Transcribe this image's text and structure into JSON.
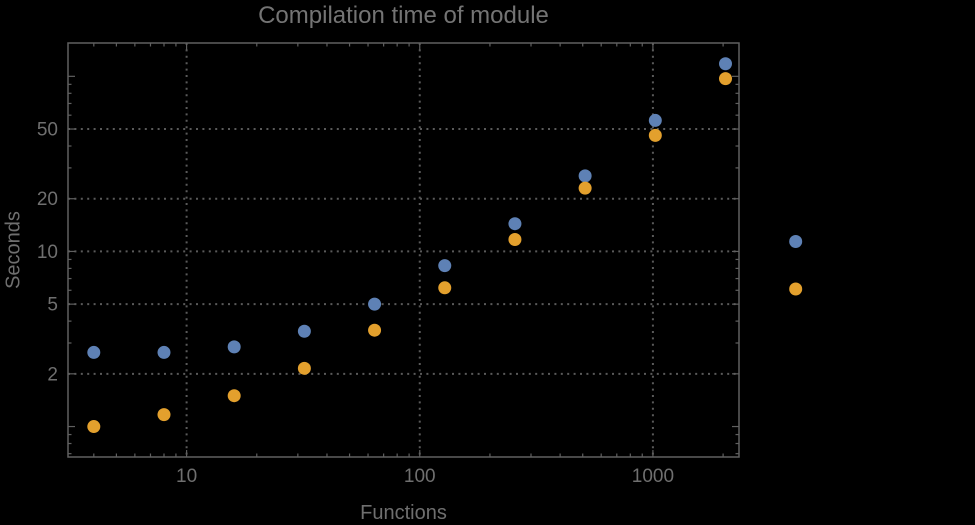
{
  "chart_data": {
    "type": "scatter",
    "title": "Compilation time of module",
    "xlabel": "Functions",
    "ylabel": "Seconds",
    "x_scale": "log",
    "y_scale": "log",
    "xlim": [
      3.1,
      2340
    ],
    "ylim": [
      0.67,
      155
    ],
    "grid": "dotted",
    "legend": "none",
    "clipping": false,
    "x_ticks": [
      10,
      100,
      1000
    ],
    "x_tick_labels": [
      "10",
      "100",
      "1000"
    ],
    "x_minor_ticks": [
      4,
      5,
      6,
      7,
      8,
      9,
      20,
      30,
      40,
      50,
      60,
      70,
      80,
      90,
      200,
      300,
      400,
      500,
      600,
      700,
      800,
      900,
      2000
    ],
    "y_ticks": [
      2,
      5,
      10,
      20,
      50
    ],
    "y_tick_labels": [
      "2",
      "5",
      "10",
      "20",
      "50"
    ],
    "y_unlabeled_major_ticks": [
      1,
      100
    ],
    "y_minor_ticks": [
      0.7,
      0.8,
      0.9,
      3,
      4,
      6,
      7,
      8,
      9,
      30,
      40,
      60,
      70,
      80,
      90
    ],
    "x": [
      4,
      8,
      16,
      32,
      64,
      128,
      256,
      512,
      1024,
      2048,
      4096
    ],
    "series": [
      {
        "name": "blue",
        "color": "#5e81b5",
        "values": [
          2.65,
          2.65,
          2.85,
          3.5,
          5.0,
          8.3,
          14.4,
          27,
          56,
          118,
          11.4
        ]
      },
      {
        "name": "orange",
        "color": "#e3a02d",
        "values": [
          1.0,
          1.17,
          1.5,
          2.15,
          3.55,
          6.2,
          11.7,
          23,
          46,
          97,
          6.1
        ]
      }
    ],
    "colors": {
      "background": "#000000",
      "frame": "#606060",
      "grid": "#5a5a5a",
      "tick_text": "#6f6f6f",
      "title_text": "#747474"
    }
  }
}
